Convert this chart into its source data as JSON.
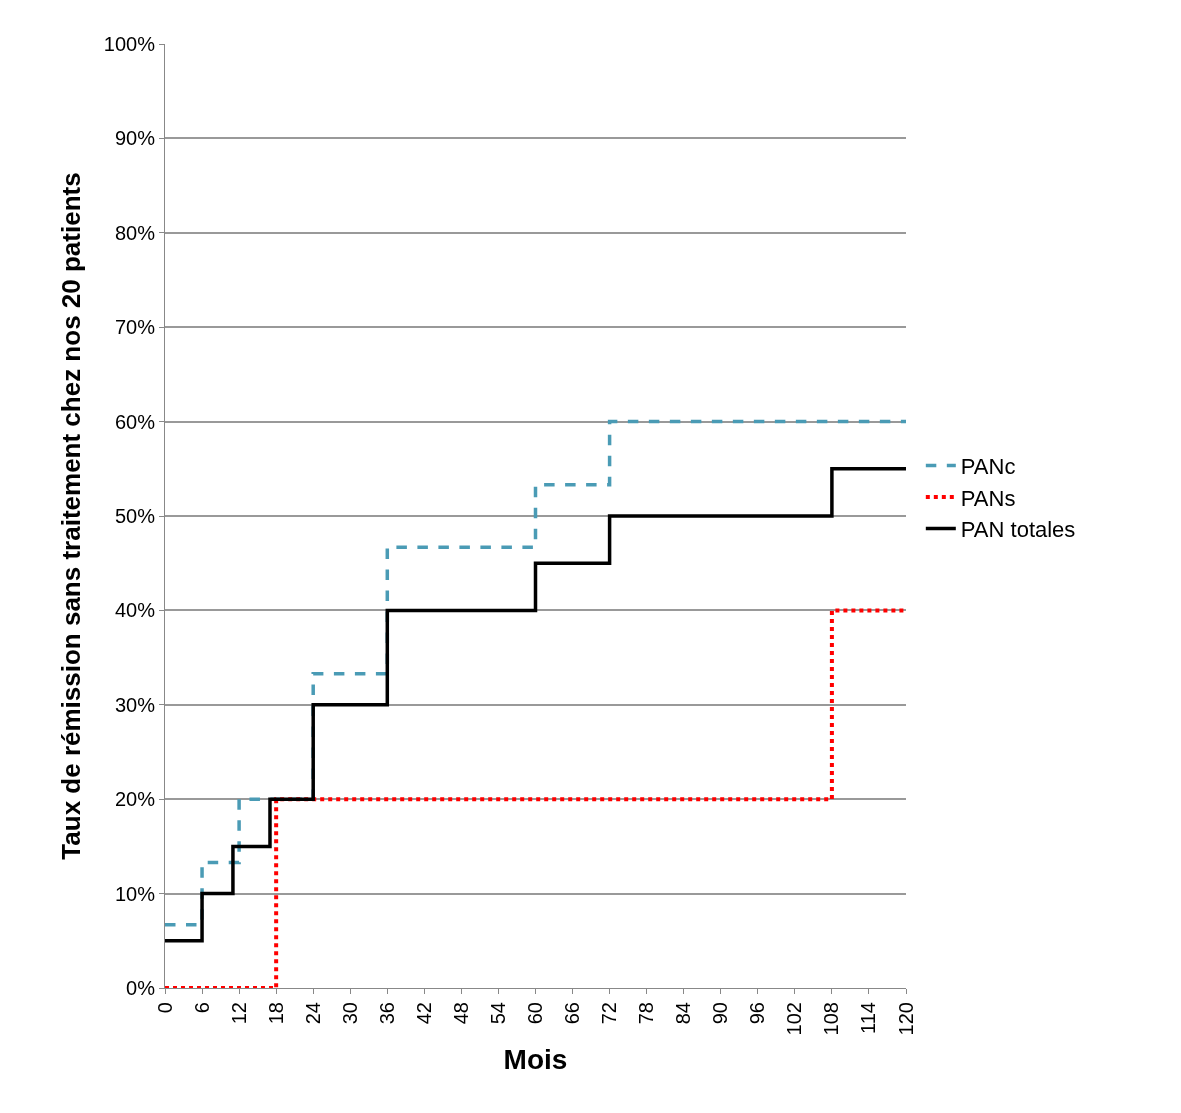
{
  "chart_data": {
    "type": "step",
    "xlabel": "Mois",
    "ylabel": "Taux de rémission sans traitement chez nos 20 patients",
    "series": [
      {
        "name": "PANc",
        "color": "#4a9bb5",
        "line_style": "dashed",
        "x": [
          0,
          6,
          12,
          24,
          36,
          60,
          72,
          120
        ],
        "values": [
          6.7,
          13.3,
          20,
          33.3,
          46.7,
          53.3,
          60,
          60
        ]
      },
      {
        "name": "PANs",
        "color": "#ff0000",
        "line_style": "dotted",
        "x": [
          0,
          18,
          108,
          120
        ],
        "values": [
          0,
          20,
          40,
          40
        ]
      },
      {
        "name": "PAN totales",
        "color": "#000000",
        "line_style": "solid",
        "x": [
          0,
          6,
          11,
          17,
          24,
          36,
          60,
          72,
          108,
          120
        ],
        "values": [
          5,
          10,
          15,
          20,
          30,
          40,
          45,
          50,
          55,
          55
        ]
      }
    ],
    "xlim": [
      0,
      120
    ],
    "xticks": [
      0,
      6,
      12,
      18,
      24,
      30,
      36,
      42,
      48,
      54,
      60,
      66,
      72,
      78,
      84,
      90,
      96,
      102,
      108,
      114,
      120
    ],
    "ylim": [
      0,
      100
    ],
    "yticks": [
      {
        "value": 0,
        "label": "0%"
      },
      {
        "value": 10,
        "label": "10%"
      },
      {
        "value": 20,
        "label": "20%"
      },
      {
        "value": 30,
        "label": "30%"
      },
      {
        "value": 40,
        "label": "40%"
      },
      {
        "value": 50,
        "label": "50%"
      },
      {
        "value": 60,
        "label": "60%"
      },
      {
        "value": 70,
        "label": "70%"
      },
      {
        "value": 80,
        "label": "80%"
      },
      {
        "value": 90,
        "label": "90%"
      },
      {
        "value": 100,
        "label": "100%"
      }
    ],
    "grid": "y",
    "legend": "right"
  }
}
